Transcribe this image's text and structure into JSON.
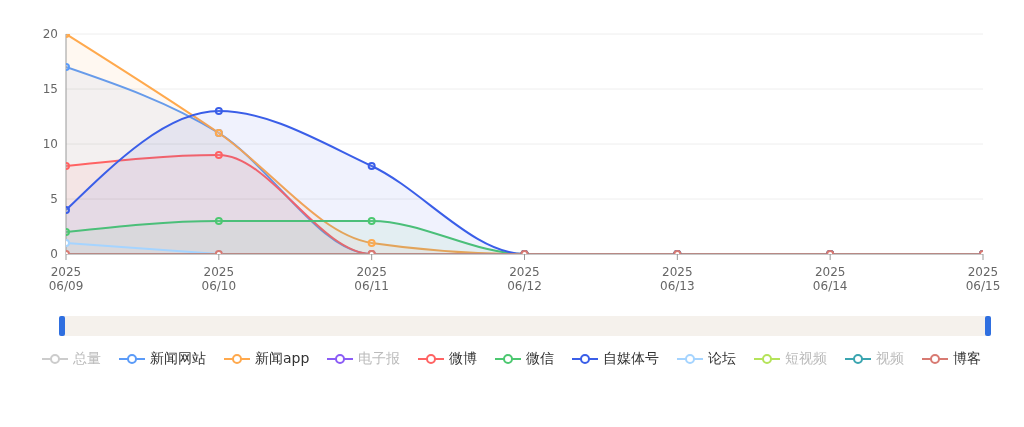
{
  "chart_data": {
    "type": "area",
    "categories": [
      "2025\n06/09",
      "2025\n06/10",
      "2025\n06/11",
      "2025\n06/12",
      "2025\n06/13",
      "2025\n06/14",
      "2025\n06/15"
    ],
    "ylim": [
      0,
      20
    ],
    "yticks": [
      0,
      5,
      10,
      15,
      20
    ],
    "grid": "y",
    "legend": "bottom",
    "marker": "circle",
    "series": [
      {
        "name": "总量",
        "color": "#cccccc",
        "values": [
          null,
          null,
          null,
          null,
          null,
          null,
          null
        ]
      },
      {
        "name": "新闻网站",
        "color": "#5b9bf8",
        "values": [
          17,
          11,
          0,
          0,
          0,
          0,
          0
        ]
      },
      {
        "name": "新闻app",
        "color": "#ffa94d",
        "values": [
          20,
          11,
          1,
          0,
          0,
          0,
          0
        ]
      },
      {
        "name": "电子报",
        "color": "#8b5cf6",
        "type": "line",
        "values": [
          null,
          null,
          null,
          null,
          null,
          null,
          null
        ]
      },
      {
        "name": "微博",
        "color": "#ff6363",
        "values": [
          8,
          9,
          0,
          0,
          0,
          0,
          0
        ]
      },
      {
        "name": "微信",
        "color": "#4cc870",
        "values": [
          2,
          3,
          3,
          0,
          0,
          0,
          0
        ]
      },
      {
        "name": "自媒体号",
        "color": "#3a5ee8",
        "values": [
          4,
          13,
          8,
          0,
          0,
          0,
          0
        ]
      },
      {
        "name": "论坛",
        "color": "#a5d4ff",
        "type": "line",
        "values": [
          1,
          0,
          null,
          null,
          null,
          null,
          null
        ]
      },
      {
        "name": "短视频",
        "color": "#b5e35a",
        "type": "line",
        "values": [
          null,
          null,
          null,
          null,
          null,
          null,
          null
        ]
      },
      {
        "name": "视频",
        "color": "#3aa5b0",
        "type": "line",
        "values": [
          null,
          null,
          null,
          null,
          null,
          null,
          null
        ]
      },
      {
        "name": "博客",
        "color": "#d87a72",
        "type": "line",
        "values": [
          0,
          0,
          0,
          0,
          0,
          0,
          0
        ]
      }
    ]
  }
}
